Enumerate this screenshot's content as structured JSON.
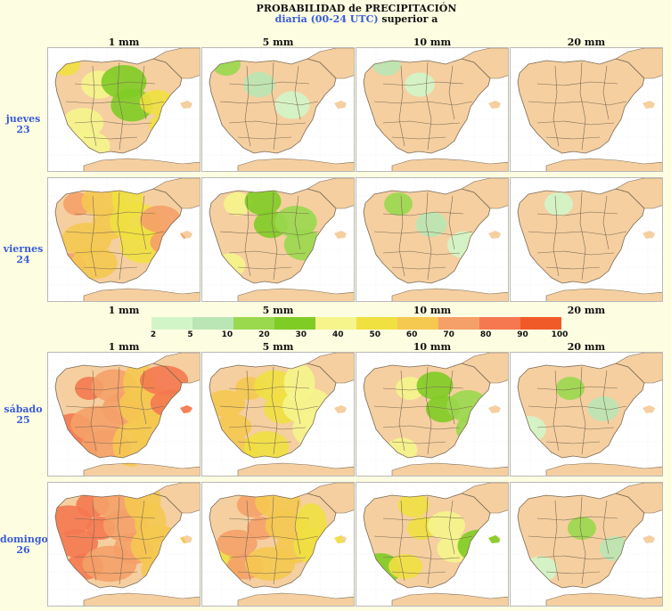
{
  "title": {
    "line1": "PROBABILIDAD de PRECIPITACIÓN",
    "line2_colored": "diaria (00-24 UTC)",
    "line2_rest": " superior a"
  },
  "columns": [
    "1 mm",
    "5 mm",
    "10 mm",
    "20 mm"
  ],
  "rows": [
    {
      "day": "jueves",
      "date": "23"
    },
    {
      "day": "viernes",
      "date": "24"
    },
    {
      "day": "sábado",
      "date": "25"
    },
    {
      "day": "domingo",
      "date": "26"
    }
  ],
  "legend": {
    "ticks": [
      "2",
      "5",
      "10",
      "20",
      "30",
      "40",
      "50",
      "60",
      "70",
      "80",
      "90",
      "100"
    ],
    "colors": [
      "#d2f5c8",
      "#b9e6b4",
      "#9ad84e",
      "#7fcc25",
      "#f5f58c",
      "#f0e040",
      "#f5c850",
      "#f5a068",
      "#f57850",
      "#f05a28"
    ]
  },
  "colors": {
    "land": "#f5cfa0",
    "sea": "#ffffff",
    "border": "#7a6a55",
    "accent_blue": "#3a5bd9"
  },
  "probability_levels": [
    [
      0.55,
      0.25,
      0.12,
      0.03
    ],
    [
      0.75,
      0.45,
      0.22,
      0.05
    ],
    [
      0.92,
      0.7,
      0.45,
      0.2
    ],
    [
      0.9,
      0.75,
      0.5,
      0.18
    ]
  ]
}
